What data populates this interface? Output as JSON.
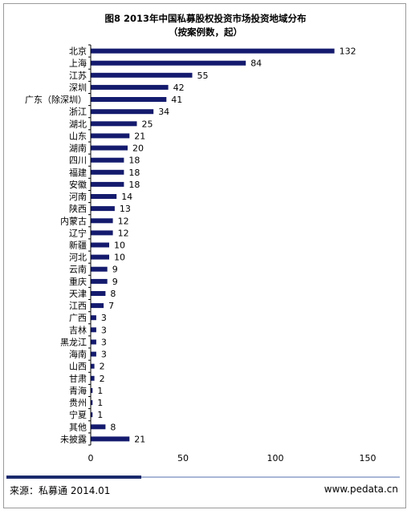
{
  "chart_data": {
    "type": "bar",
    "orientation": "horizontal",
    "title": "图8 2013年中国私募股权投资市场投资地域分布",
    "subtitle": "（按案例数，起）",
    "categories": [
      "北京",
      "上海",
      "江苏",
      "深圳",
      "广东（除深圳）",
      "浙江",
      "湖北",
      "山东",
      "湖南",
      "四川",
      "福建",
      "安徽",
      "河南",
      "陕西",
      "内蒙古",
      "辽宁",
      "新疆",
      "河北",
      "云南",
      "重庆",
      "天津",
      "江西",
      "广西",
      "吉林",
      "黑龙江",
      "海南",
      "山西",
      "甘肃",
      "青海",
      "贵州",
      "宁夏",
      "其他",
      "未披露"
    ],
    "values": [
      132,
      84,
      55,
      42,
      41,
      34,
      25,
      21,
      20,
      18,
      18,
      18,
      14,
      13,
      12,
      12,
      10,
      10,
      9,
      9,
      8,
      7,
      3,
      3,
      3,
      3,
      2,
      2,
      1,
      1,
      1,
      8,
      21
    ],
    "xlim": [
      0,
      150
    ],
    "xticks": [
      0,
      50,
      100,
      150
    ],
    "bar_color": "#141b6e",
    "grid": false
  },
  "footer": {
    "source": "来源：私募通  2014.01",
    "site": "www.pedata.cn"
  },
  "colors": {
    "accent_dark": "#1a2a6c",
    "accent_light": "#a9b6d6"
  }
}
